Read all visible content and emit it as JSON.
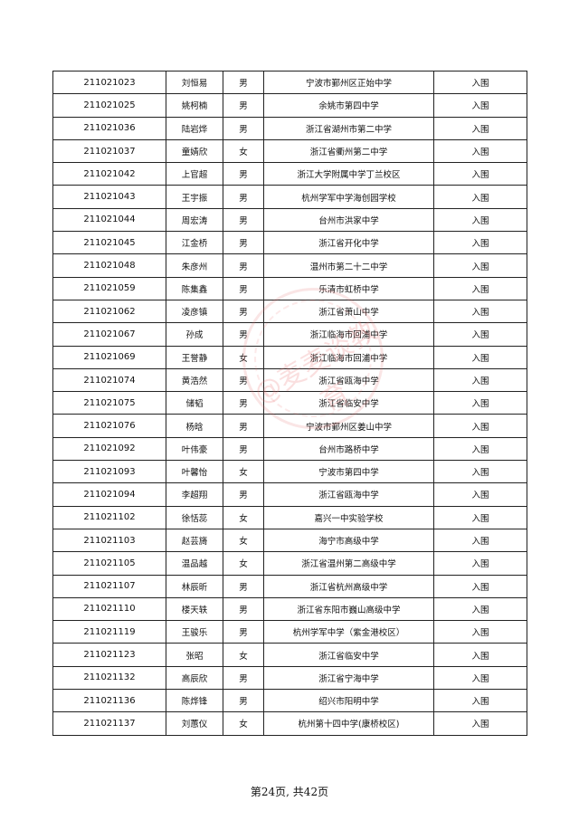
{
  "rows": [
    {
      "id": "211021023",
      "name": "刘恒易",
      "gender": "男",
      "school": "宁波市鄞州区正始中学",
      "status": "入围"
    },
    {
      "id": "211021025",
      "name": "姚柯楠",
      "gender": "男",
      "school": "余姚市第四中学",
      "status": "入围"
    },
    {
      "id": "211021036",
      "name": "陆岩烨",
      "gender": "男",
      "school": "浙江省湖州市第二中学",
      "status": "入围"
    },
    {
      "id": "211021037",
      "name": "童婧欣",
      "gender": "女",
      "school": "浙江省衢州第二中学",
      "status": "入围"
    },
    {
      "id": "211021042",
      "name": "上官超",
      "gender": "男",
      "school": "浙江大学附属中学丁兰校区",
      "status": "入围"
    },
    {
      "id": "211021043",
      "name": "王宇振",
      "gender": "男",
      "school": "杭州学军中学海创园学校",
      "status": "入围"
    },
    {
      "id": "211021044",
      "name": "周宏涛",
      "gender": "男",
      "school": "台州市洪家中学",
      "status": "入围"
    },
    {
      "id": "211021045",
      "name": "江金桥",
      "gender": "男",
      "school": "浙江省开化中学",
      "status": "入围"
    },
    {
      "id": "211021048",
      "name": "朱彦州",
      "gender": "男",
      "school": "温州市第二十二中学",
      "status": "入围"
    },
    {
      "id": "211021059",
      "name": "陈集鑫",
      "gender": "男",
      "school": "乐清市虹桥中学",
      "status": "入围"
    },
    {
      "id": "211021062",
      "name": "凌彦镇",
      "gender": "男",
      "school": "浙江省萧山中学",
      "status": "入围"
    },
    {
      "id": "211021067",
      "name": "孙成",
      "gender": "男",
      "school": "浙江临海市回浦中学",
      "status": "入围"
    },
    {
      "id": "211021069",
      "name": "王誉静",
      "gender": "女",
      "school": "浙江临海市回浦中学",
      "status": "入围"
    },
    {
      "id": "211021074",
      "name": "黄浩然",
      "gender": "男",
      "school": "浙江省瓯海中学",
      "status": "入围"
    },
    {
      "id": "211021075",
      "name": "储韬",
      "gender": "男",
      "school": "浙江省临安中学",
      "status": "入围"
    },
    {
      "id": "211021076",
      "name": "杨晗",
      "gender": "男",
      "school": "宁波市鄞州区姜山中学",
      "status": "入围"
    },
    {
      "id": "211021092",
      "name": "叶伟豪",
      "gender": "男",
      "school": "台州市路桥中学",
      "status": "入围"
    },
    {
      "id": "211021093",
      "name": "叶馨怡",
      "gender": "女",
      "school": "宁波市第四中学",
      "status": "入围"
    },
    {
      "id": "211021094",
      "name": "李超翔",
      "gender": "男",
      "school": "浙江省瓯海中学",
      "status": "入围"
    },
    {
      "id": "211021102",
      "name": "徐恬蕊",
      "gender": "女",
      "school": "嘉兴一中实验学校",
      "status": "入围"
    },
    {
      "id": "211021103",
      "name": "赵芸旖",
      "gender": "女",
      "school": "海宁市高级中学",
      "status": "入围"
    },
    {
      "id": "211021105",
      "name": "温品越",
      "gender": "女",
      "school": "浙江省温州第二高级中学",
      "status": "入围"
    },
    {
      "id": "211021107",
      "name": "林辰昕",
      "gender": "男",
      "school": "浙江省杭州高级中学",
      "status": "入围"
    },
    {
      "id": "211021110",
      "name": "楼天轶",
      "gender": "男",
      "school": "浙江省东阳市巍山高级中学",
      "status": "入围"
    },
    {
      "id": "211021119",
      "name": "王骏乐",
      "gender": "男",
      "school": "杭州学军中学（紫金港校区）",
      "status": "入围"
    },
    {
      "id": "211021123",
      "name": "张昭",
      "gender": "女",
      "school": "浙江省临安中学",
      "status": "入围"
    },
    {
      "id": "211021132",
      "name": "高辰欣",
      "gender": "男",
      "school": "浙江省宁海中学",
      "status": "入围"
    },
    {
      "id": "211021136",
      "name": "陈烨锋",
      "gender": "男",
      "school": "绍兴市阳明中学",
      "status": "入围"
    },
    {
      "id": "211021137",
      "name": "刘蕙仪",
      "gender": "女",
      "school": "杭州第十四中学(康桥校区)",
      "status": "入围"
    }
  ],
  "watermark": "@麦麦谈教育",
  "footer": "第24页, 共42页"
}
